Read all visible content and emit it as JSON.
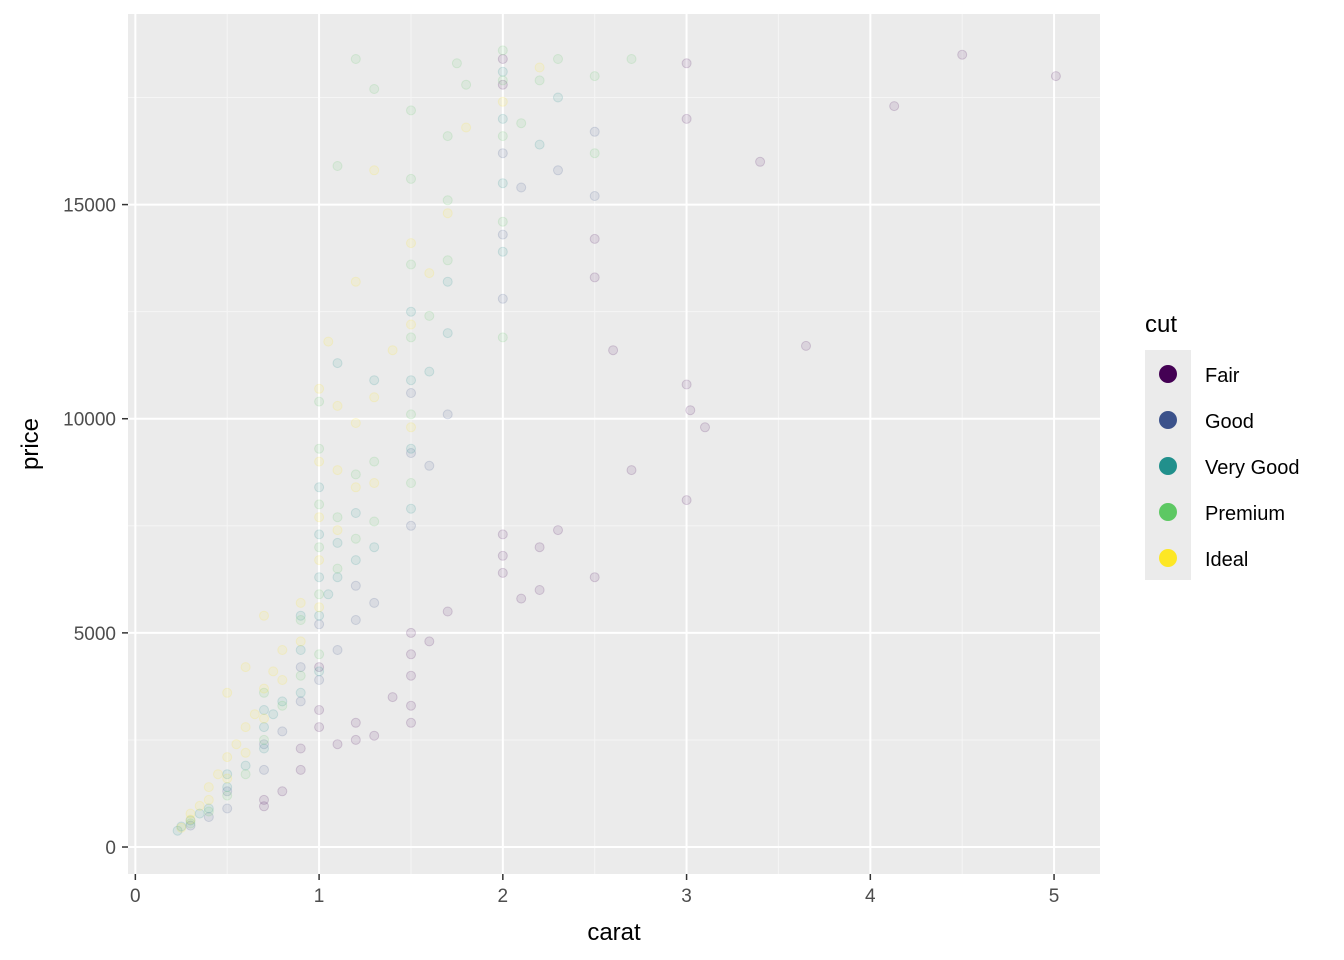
{
  "chart_data": {
    "type": "scatter",
    "title": "",
    "xlabel": "carat",
    "ylabel": "price",
    "xlim": [
      -0.04,
      5.25
    ],
    "ylim": [
      -630,
      19450
    ],
    "x_ticks": [
      0,
      1,
      2,
      3,
      4,
      5
    ],
    "x_tick_labels": [
      "0",
      "1",
      "2",
      "3",
      "4",
      "5"
    ],
    "y_ticks": [
      0,
      5000,
      10000,
      15000
    ],
    "y_tick_labels": [
      "0",
      "5000",
      "10000",
      "15000"
    ],
    "grid": true,
    "point_alpha": 0.1,
    "legend": {
      "title": "cut",
      "placement": "right",
      "entries": [
        {
          "label": "Fair",
          "color": "#440154"
        },
        {
          "label": "Good",
          "color": "#3B528B"
        },
        {
          "label": "Very Good",
          "color": "#21908C"
        },
        {
          "label": "Premium",
          "color": "#5DC863"
        },
        {
          "label": "Ideal",
          "color": "#FDE725"
        }
      ]
    },
    "series": [
      {
        "name": "Fair",
        "color": "#440154",
        "points": [
          [
            0.7,
            950
          ],
          [
            0.7,
            1100
          ],
          [
            0.8,
            1300
          ],
          [
            0.9,
            1800
          ],
          [
            0.9,
            2300
          ],
          [
            1.0,
            2800
          ],
          [
            1.0,
            3200
          ],
          [
            1.0,
            4200
          ],
          [
            1.1,
            2400
          ],
          [
            1.2,
            2900
          ],
          [
            1.2,
            2500
          ],
          [
            1.3,
            2600
          ],
          [
            1.4,
            3500
          ],
          [
            1.5,
            4000
          ],
          [
            1.5,
            4500
          ],
          [
            1.5,
            3300
          ],
          [
            1.5,
            2900
          ],
          [
            1.5,
            5000
          ],
          [
            1.6,
            4800
          ],
          [
            1.7,
            5500
          ],
          [
            2.0,
            6400
          ],
          [
            2.0,
            6800
          ],
          [
            2.0,
            7300
          ],
          [
            2.1,
            5800
          ],
          [
            2.2,
            7000
          ],
          [
            2.3,
            7400
          ],
          [
            2.2,
            6000
          ],
          [
            2.0,
            17800
          ],
          [
            2.0,
            18400
          ],
          [
            3.0,
            18300
          ],
          [
            3.0,
            17000
          ],
          [
            3.0,
            10800
          ],
          [
            3.0,
            8100
          ],
          [
            3.02,
            10200
          ],
          [
            3.1,
            9800
          ],
          [
            2.5,
            13300
          ],
          [
            2.5,
            14200
          ],
          [
            2.5,
            6300
          ],
          [
            2.6,
            11600
          ],
          [
            2.7,
            8800
          ],
          [
            3.65,
            11700
          ],
          [
            4.13,
            17300
          ],
          [
            4.5,
            18500
          ],
          [
            5.01,
            18000
          ],
          [
            3.4,
            16000
          ]
        ]
      },
      {
        "name": "Good",
        "color": "#3B528B",
        "points": [
          [
            0.3,
            500
          ],
          [
            0.4,
            700
          ],
          [
            0.5,
            900
          ],
          [
            0.5,
            1300
          ],
          [
            0.7,
            1800
          ],
          [
            0.7,
            2400
          ],
          [
            0.8,
            2700
          ],
          [
            0.9,
            3400
          ],
          [
            0.9,
            4200
          ],
          [
            1.0,
            3900
          ],
          [
            1.0,
            5200
          ],
          [
            1.1,
            4600
          ],
          [
            1.2,
            5300
          ],
          [
            1.2,
            6100
          ],
          [
            1.3,
            5700
          ],
          [
            1.5,
            7500
          ],
          [
            1.5,
            9200
          ],
          [
            1.5,
            10600
          ],
          [
            1.6,
            8900
          ],
          [
            1.7,
            10100
          ],
          [
            2.0,
            12800
          ],
          [
            2.0,
            14300
          ],
          [
            2.0,
            16200
          ],
          [
            2.1,
            15400
          ],
          [
            2.3,
            15800
          ],
          [
            2.5,
            16700
          ],
          [
            2.5,
            15200
          ]
        ]
      },
      {
        "name": "Very Good",
        "color": "#21908C",
        "points": [
          [
            0.23,
            380
          ],
          [
            0.25,
            480
          ],
          [
            0.3,
            620
          ],
          [
            0.35,
            780
          ],
          [
            0.4,
            900
          ],
          [
            0.5,
            1400
          ],
          [
            0.5,
            1700
          ],
          [
            0.6,
            1900
          ],
          [
            0.7,
            2300
          ],
          [
            0.7,
            2800
          ],
          [
            0.7,
            3200
          ],
          [
            0.75,
            3100
          ],
          [
            0.8,
            3400
          ],
          [
            0.9,
            3600
          ],
          [
            0.9,
            4600
          ],
          [
            0.9,
            5400
          ],
          [
            1.0,
            4100
          ],
          [
            1.0,
            5400
          ],
          [
            1.0,
            6300
          ],
          [
            1.0,
            7300
          ],
          [
            1.0,
            8400
          ],
          [
            1.05,
            5900
          ],
          [
            1.1,
            6300
          ],
          [
            1.1,
            7100
          ],
          [
            1.2,
            6700
          ],
          [
            1.2,
            7800
          ],
          [
            1.3,
            7000
          ],
          [
            1.5,
            7900
          ],
          [
            1.5,
            9300
          ],
          [
            1.5,
            10900
          ],
          [
            1.5,
            12500
          ],
          [
            1.6,
            11100
          ],
          [
            1.7,
            12000
          ],
          [
            1.7,
            13200
          ],
          [
            2.0,
            13900
          ],
          [
            2.0,
            15500
          ],
          [
            2.0,
            17000
          ],
          [
            2.0,
            18100
          ],
          [
            2.2,
            16400
          ],
          [
            2.3,
            17500
          ],
          [
            1.3,
            10900
          ],
          [
            1.1,
            11300
          ]
        ]
      },
      {
        "name": "Premium",
        "color": "#5DC863",
        "points": [
          [
            0.3,
            550
          ],
          [
            0.4,
            830
          ],
          [
            0.5,
            1200
          ],
          [
            0.6,
            1700
          ],
          [
            0.7,
            2500
          ],
          [
            0.7,
            3600
          ],
          [
            0.8,
            3300
          ],
          [
            0.9,
            4000
          ],
          [
            0.9,
            5300
          ],
          [
            1.0,
            4500
          ],
          [
            1.0,
            5900
          ],
          [
            1.0,
            7000
          ],
          [
            1.0,
            8000
          ],
          [
            1.0,
            9300
          ],
          [
            1.0,
            10400
          ],
          [
            1.1,
            6500
          ],
          [
            1.1,
            7700
          ],
          [
            1.2,
            7200
          ],
          [
            1.2,
            8700
          ],
          [
            1.3,
            7600
          ],
          [
            1.3,
            9000
          ],
          [
            1.5,
            8500
          ],
          [
            1.5,
            10100
          ],
          [
            1.5,
            11900
          ],
          [
            1.5,
            13600
          ],
          [
            1.5,
            15600
          ],
          [
            1.5,
            17200
          ],
          [
            1.6,
            12400
          ],
          [
            1.7,
            13700
          ],
          [
            1.7,
            15100
          ],
          [
            1.7,
            16600
          ],
          [
            1.75,
            18300
          ],
          [
            1.8,
            17800
          ],
          [
            2.0,
            11900
          ],
          [
            2.0,
            14600
          ],
          [
            2.0,
            16600
          ],
          [
            2.0,
            17900
          ],
          [
            2.0,
            18600
          ],
          [
            2.1,
            16900
          ],
          [
            2.2,
            17900
          ],
          [
            2.3,
            18400
          ],
          [
            2.5,
            18000
          ],
          [
            2.5,
            16200
          ],
          [
            1.2,
            18400
          ],
          [
            1.3,
            17700
          ],
          [
            1.1,
            15900
          ],
          [
            2.7,
            18400
          ]
        ]
      },
      {
        "name": "Ideal",
        "color": "#FDE725",
        "points": [
          [
            0.25,
            450
          ],
          [
            0.3,
            640
          ],
          [
            0.3,
            780
          ],
          [
            0.35,
            960
          ],
          [
            0.4,
            1100
          ],
          [
            0.4,
            1400
          ],
          [
            0.45,
            1700
          ],
          [
            0.5,
            1600
          ],
          [
            0.5,
            2100
          ],
          [
            0.55,
            2400
          ],
          [
            0.6,
            2200
          ],
          [
            0.6,
            2800
          ],
          [
            0.65,
            3100
          ],
          [
            0.7,
            3000
          ],
          [
            0.7,
            3700
          ],
          [
            0.75,
            4100
          ],
          [
            0.8,
            3900
          ],
          [
            0.8,
            4600
          ],
          [
            0.9,
            4800
          ],
          [
            0.9,
            5700
          ],
          [
            1.0,
            5600
          ],
          [
            1.0,
            6700
          ],
          [
            1.0,
            7700
          ],
          [
            1.0,
            9000
          ],
          [
            1.0,
            10700
          ],
          [
            1.05,
            11800
          ],
          [
            1.1,
            7400
          ],
          [
            1.1,
            8800
          ],
          [
            1.1,
            10300
          ],
          [
            1.2,
            8400
          ],
          [
            1.2,
            9900
          ],
          [
            1.3,
            8500
          ],
          [
            1.3,
            10500
          ],
          [
            1.4,
            11600
          ],
          [
            1.5,
            9800
          ],
          [
            1.5,
            12200
          ],
          [
            1.5,
            14100
          ],
          [
            1.6,
            13400
          ],
          [
            1.7,
            14800
          ],
          [
            1.8,
            16800
          ],
          [
            2.0,
            17400
          ],
          [
            2.2,
            18200
          ],
          [
            0.5,
            3600
          ],
          [
            0.6,
            4200
          ],
          [
            0.7,
            5400
          ],
          [
            1.2,
            13200
          ],
          [
            1.3,
            15800
          ]
        ]
      }
    ]
  }
}
